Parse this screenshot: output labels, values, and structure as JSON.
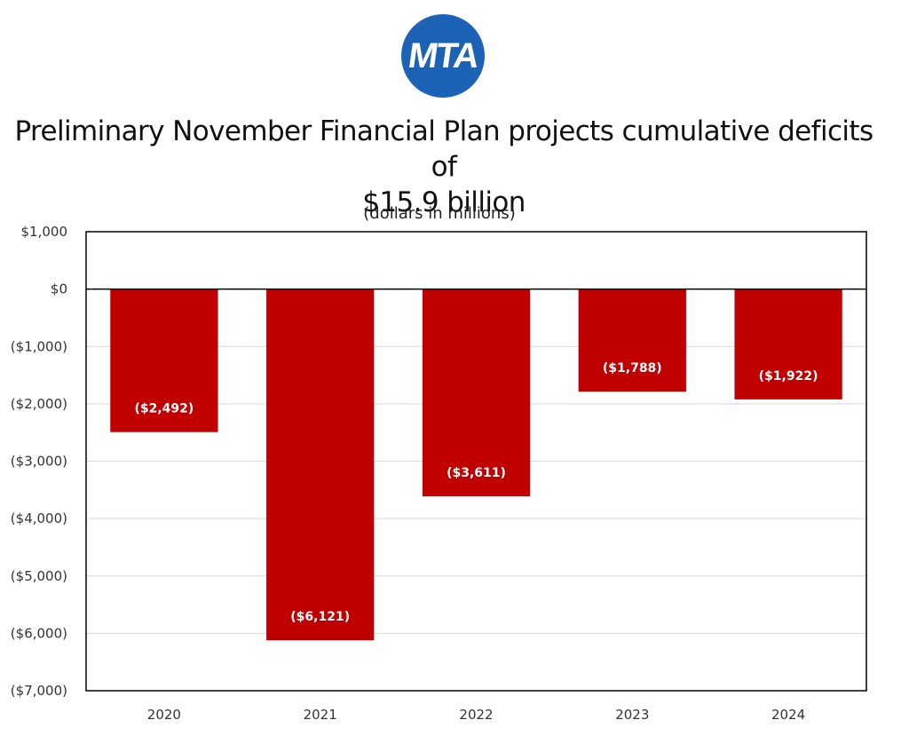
{
  "logo": {
    "text": "MTA",
    "color": "#1c63b7"
  },
  "title_lines": [
    "Preliminary November Financial Plan projects cumulative deficits of",
    "$15.9 billion"
  ],
  "subtitle": "(dollars in millions)",
  "colors": {
    "bar": "#c00000",
    "grid": "#d9d9d9",
    "axis": "#000000"
  },
  "chart_data": {
    "type": "bar",
    "categories": [
      "2020",
      "2021",
      "2022",
      "2023",
      "2024"
    ],
    "values": [
      -2492,
      -6121,
      -3611,
      -1788,
      -1922
    ],
    "data_labels": [
      "($2,492)",
      "($6,121)",
      "($3,611)",
      "($1,788)",
      "($1,922)"
    ],
    "ylim": [
      -7000,
      1000
    ],
    "yticks": [
      1000,
      0,
      -1000,
      -2000,
      -3000,
      -4000,
      -5000,
      -6000,
      -7000
    ],
    "ytick_labels": [
      "$1,000",
      "$0",
      "($1,000)",
      "($2,000)",
      "($3,000)",
      "($4,000)",
      "($5,000)",
      "($6,000)",
      "($7,000)"
    ],
    "grid": true,
    "legend": false
  }
}
